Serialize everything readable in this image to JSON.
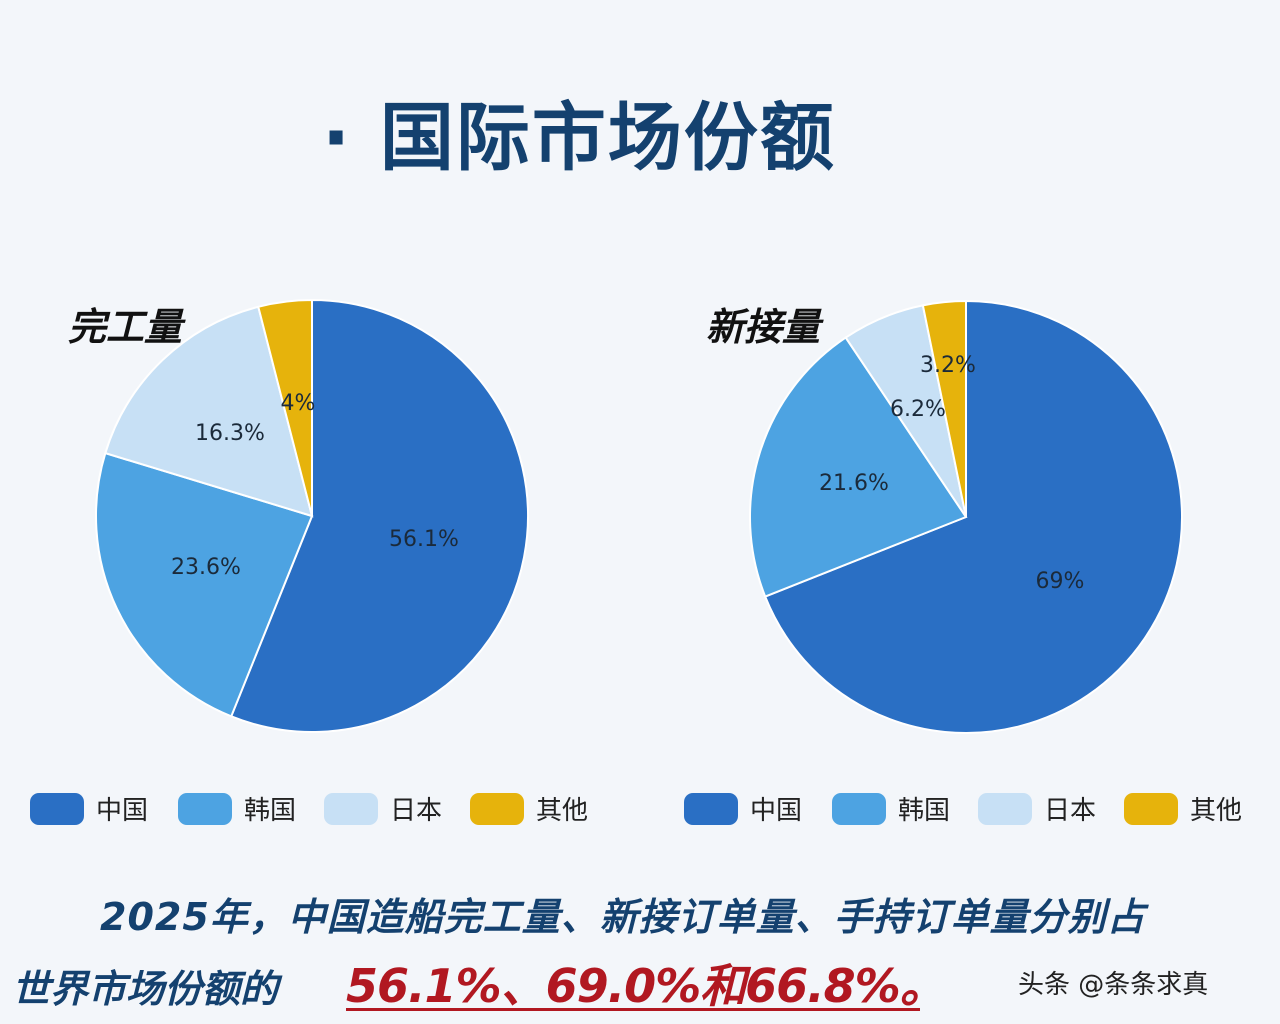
{
  "title": "· 国际市场份额",
  "chart_data": [
    {
      "type": "pie",
      "title": "完工量",
      "categories": [
        "中国",
        "韩国",
        "日本",
        "其他"
      ],
      "values": [
        56.1,
        23.6,
        16.3,
        4
      ],
      "value_labels": [
        "56.1%",
        "23.6%",
        "16.3%",
        "4%"
      ],
      "colors": [
        "#2a6fc4",
        "#4da3e2",
        "#c7e0f5",
        "#e6b30c"
      ],
      "legend": "bottom"
    },
    {
      "type": "pie",
      "title": "新接量",
      "categories": [
        "中国",
        "韩国",
        "日本",
        "其他"
      ],
      "values": [
        69,
        21.6,
        6.2,
        3.2
      ],
      "value_labels": [
        "69%",
        "21.6%",
        "6.2%",
        "3.2%"
      ],
      "colors": [
        "#2a6fc4",
        "#4da3e2",
        "#c7e0f5",
        "#e6b30c"
      ],
      "legend": "bottom"
    }
  ],
  "summary": {
    "line1": "2025年，中国造船完工量、新接订单量、手持订单量分别占",
    "line2_label": "世界市场份额的",
    "line2_values": "56.1%、69.0%和66.8%。"
  },
  "watermark": "头条 @条条求真"
}
